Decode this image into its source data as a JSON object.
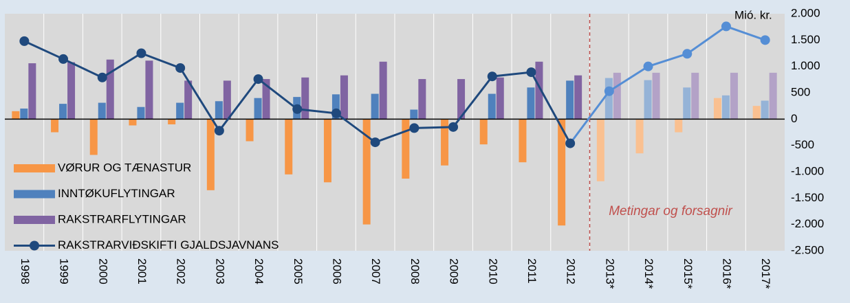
{
  "chart_data": {
    "type": "bar_line",
    "unit_label": "Mió. kr.",
    "annotation": "Metingar og forsagnir",
    "forecast_from": "2013*",
    "categories": [
      "1998",
      "1999",
      "2000",
      "2001",
      "2002",
      "2003",
      "2004",
      "2005",
      "2006",
      "2007",
      "2008",
      "2009",
      "2010",
      "2011",
      "2012",
      "2013*",
      "2014*",
      "2015*",
      "2016*",
      "2017*"
    ],
    "series": [
      {
        "name": "VØRUR OG TÆNASTUR",
        "type": "bar",
        "color": "#f79646",
        "forecast_color": "#fac090",
        "values": [
          150,
          -250,
          -680,
          -120,
          -100,
          -1350,
          -420,
          -1050,
          -1200,
          -2000,
          -1130,
          -880,
          -480,
          -820,
          -2020,
          -1180,
          -650,
          -250,
          400,
          250
        ]
      },
      {
        "name": "INNTØKUFLYTINGAR",
        "type": "bar",
        "color": "#4f81bd",
        "forecast_color": "#95b3d7",
        "values": [
          200,
          290,
          310,
          230,
          310,
          340,
          400,
          420,
          470,
          480,
          180,
          null,
          480,
          600,
          730,
          780,
          740,
          600,
          450,
          350
        ]
      },
      {
        "name": "RAKSTRARFLYTINGAR",
        "type": "bar",
        "color": "#8064a2",
        "forecast_color": "#b3a2c7",
        "values": [
          1060,
          1080,
          1130,
          1110,
          730,
          730,
          760,
          790,
          830,
          1090,
          760,
          760,
          790,
          1090,
          830,
          880,
          880,
          880,
          880,
          880
        ]
      },
      {
        "name": "RAKSTRARVIÐSKIFTI GJALDSJAVNANS",
        "type": "line",
        "color": "#1f497d",
        "forecast_color": "#558ed5",
        "values": [
          1480,
          1140,
          790,
          1250,
          970,
          -220,
          760,
          190,
          110,
          -440,
          -170,
          -150,
          810,
          890,
          -460,
          530,
          1000,
          1240,
          1760,
          1500
        ]
      }
    ],
    "ylim": [
      -2500,
      2000
    ],
    "yticks": [
      {
        "value": 2000,
        "label": "2.000"
      },
      {
        "value": 1500,
        "label": "1.500"
      },
      {
        "value": 1000,
        "label": "1.000"
      },
      500,
      0,
      -500,
      {
        "value": -1000,
        "label": "-1.000"
      },
      {
        "value": -1500,
        "label": "-1.500"
      },
      {
        "value": -2000,
        "label": "-2.000"
      },
      {
        "value": -2500,
        "label": "-2.500"
      }
    ],
    "grid": true,
    "legend": "bottom-left"
  }
}
